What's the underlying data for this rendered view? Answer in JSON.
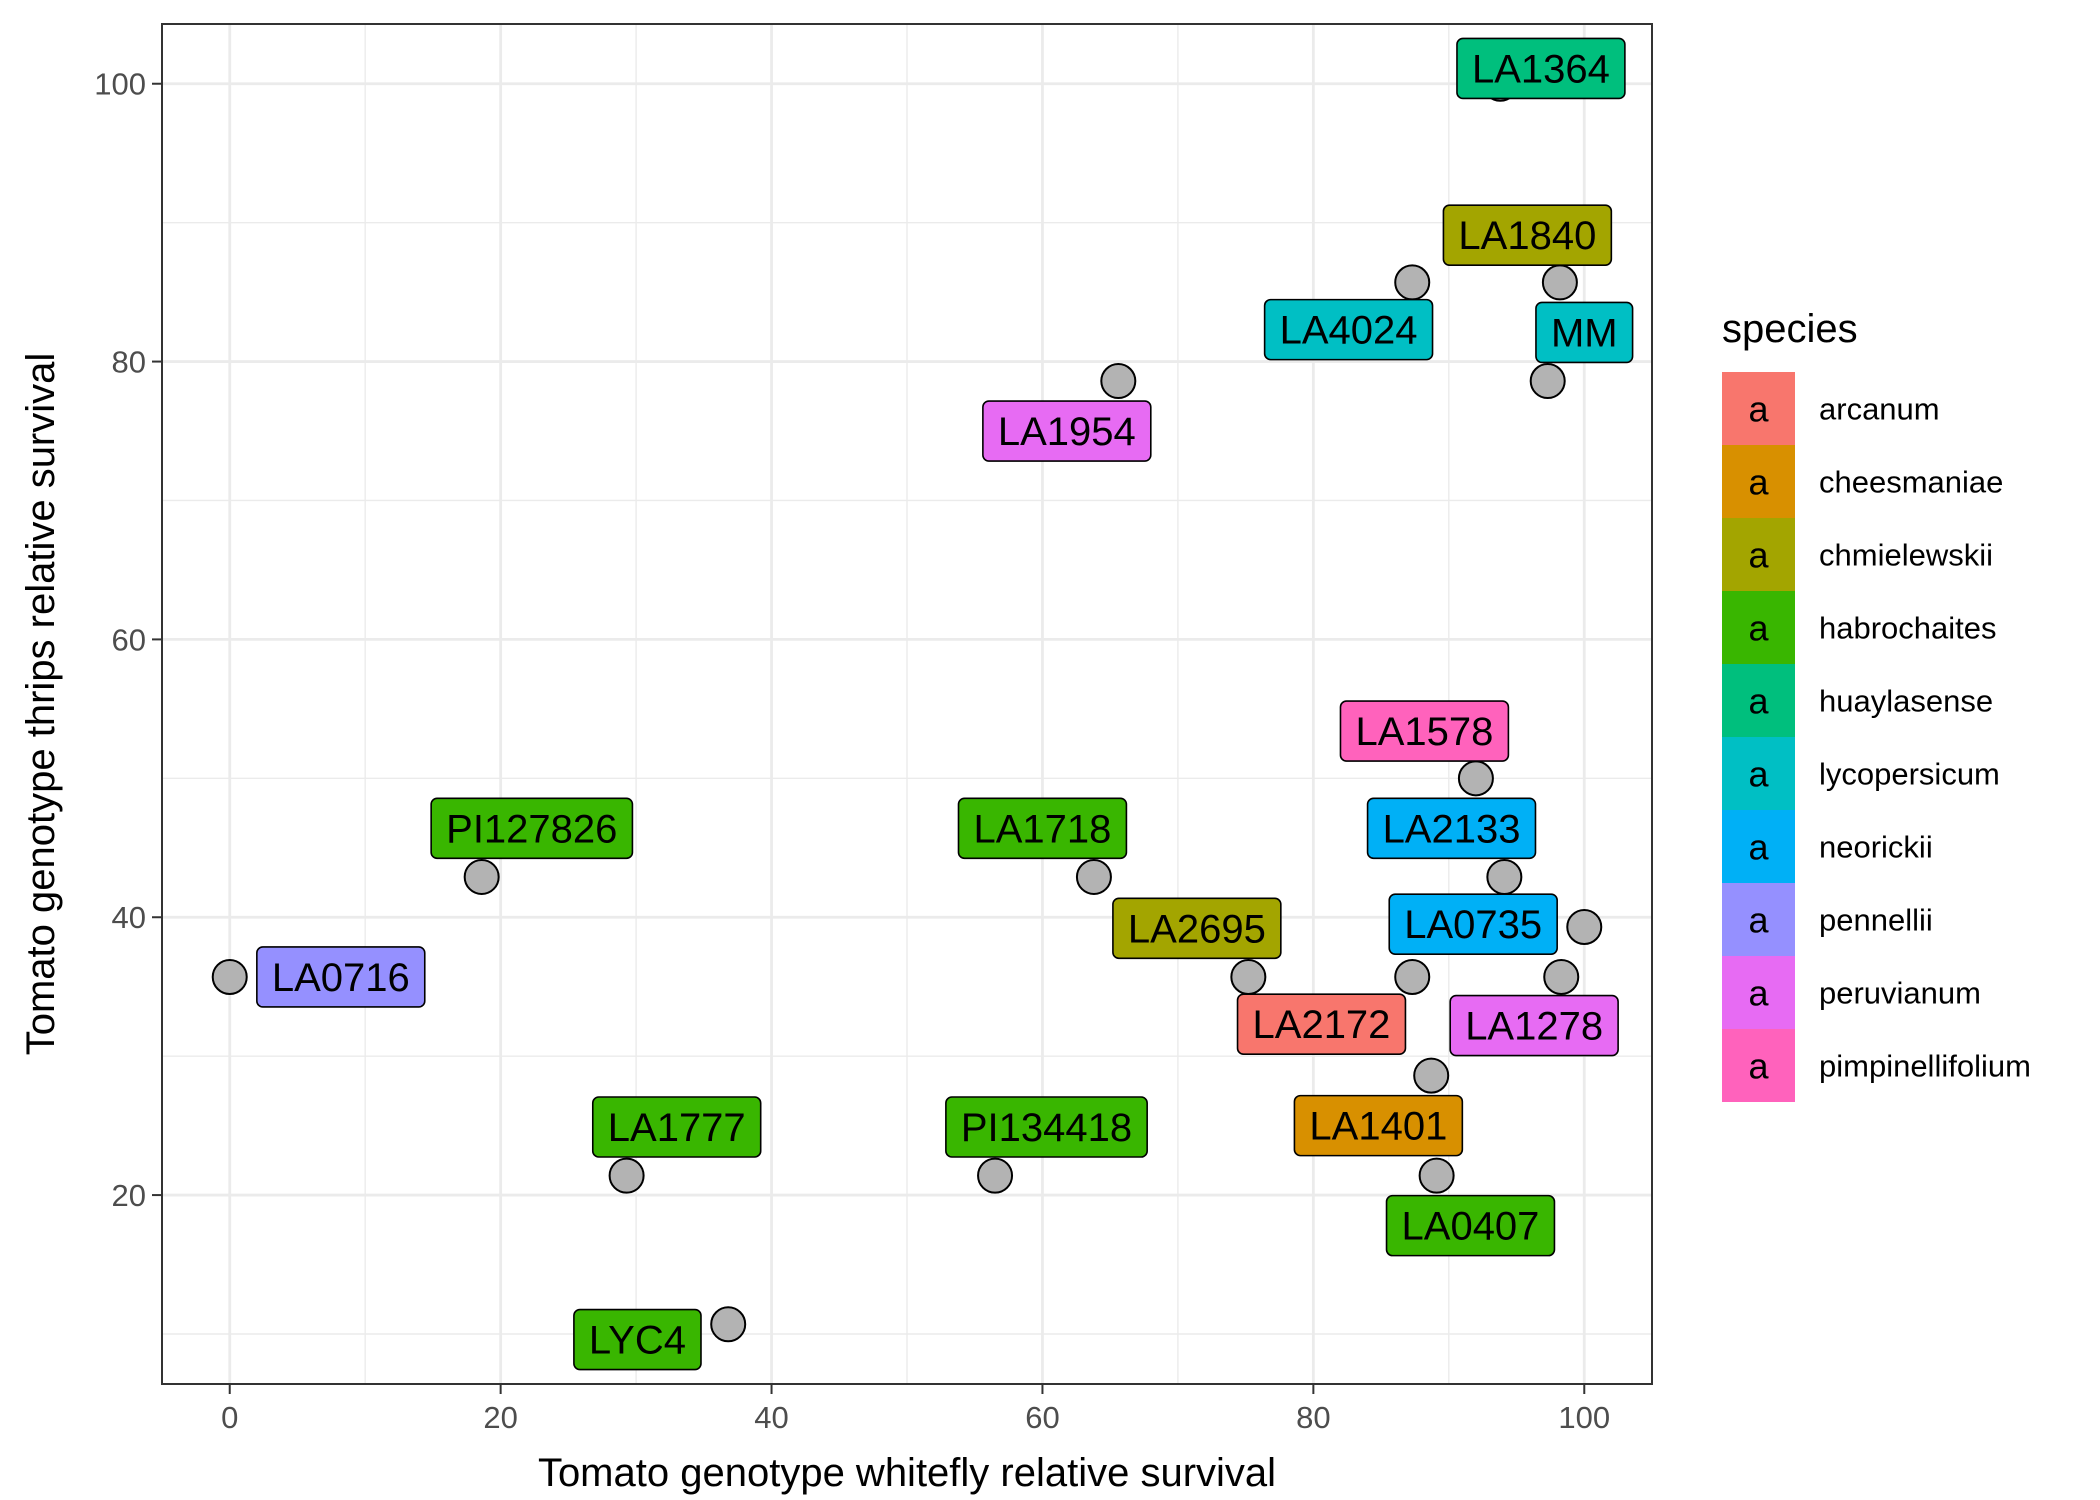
{
  "chart_data": {
    "type": "scatter",
    "title": "",
    "xlabel": "Tomato genotype whitefly relative survival",
    "ylabel": "Tomato genotype thrips relative survival",
    "xlim": [
      -5,
      105
    ],
    "ylim": [
      6.4,
      104.3
    ],
    "x_ticks": [
      0,
      20,
      40,
      60,
      80,
      100
    ],
    "y_ticks": [
      20,
      40,
      60,
      80,
      100
    ],
    "grid": true,
    "legend": {
      "title": "species",
      "placement": "right",
      "key_glyph": "a",
      "entries": [
        {
          "name": "arcanum",
          "color": "#F8766D"
        },
        {
          "name": "cheesmaniae",
          "color": "#D89000"
        },
        {
          "name": "chmielewskii",
          "color": "#A3A500"
        },
        {
          "name": "habrochaites",
          "color": "#39B600"
        },
        {
          "name": "huaylasense",
          "color": "#00BF7D"
        },
        {
          "name": "lycopersicum",
          "color": "#00BFC4"
        },
        {
          "name": "neorickii",
          "color": "#00B0F6"
        },
        {
          "name": "pennellii",
          "color": "#9590FF"
        },
        {
          "name": "peruvianum",
          "color": "#E76BF3"
        },
        {
          "name": "pimpinellifolium",
          "color": "#FF62BC"
        }
      ]
    },
    "points": [
      {
        "label": "LA1364",
        "species": "huaylasense",
        "x": 93.8,
        "y": 100.0,
        "lx": 96.8,
        "ly": 101.1
      },
      {
        "label": "LA1840",
        "species": "chmielewskii",
        "x": 98.2,
        "y": 85.7,
        "lx": 95.8,
        "ly": 89.1
      },
      {
        "label": "LA4024",
        "species": "lycopersicum",
        "x": 87.3,
        "y": 85.7,
        "lx": 82.6,
        "ly": 82.3
      },
      {
        "label": "MM",
        "species": "lycopersicum",
        "x": 97.3,
        "y": 78.6,
        "lx": 100.0,
        "ly": 82.1
      },
      {
        "label": "LA1954",
        "species": "peruvianum",
        "x": 65.6,
        "y": 78.6,
        "lx": 61.8,
        "ly": 75.0
      },
      {
        "label": "LA1578",
        "species": "pimpinellifolium",
        "x": 92.0,
        "y": 50.0,
        "lx": 88.2,
        "ly": 53.4
      },
      {
        "label": "LA2133",
        "species": "neorickii",
        "x": 94.1,
        "y": 42.9,
        "lx": 90.2,
        "ly": 46.4
      },
      {
        "label": "LA0735",
        "species": "neorickii",
        "x": 87.3,
        "y": 35.7,
        "lx": 91.8,
        "ly": 39.5
      },
      {
        "label": "LA1718",
        "species": "habrochaites",
        "x": 63.8,
        "y": 42.9,
        "lx": 60.0,
        "ly": 46.4
      },
      {
        "label": "LA2695",
        "species": "chmielewskii",
        "x": 75.2,
        "y": 35.7,
        "lx": 71.4,
        "ly": 39.2
      },
      {
        "label": "LA2172",
        "species": "arcanum",
        "x": 88.7,
        "y": 28.6,
        "lx": 80.6,
        "ly": 32.3
      },
      {
        "label": "LA1278",
        "species": "peruvianum",
        "x": 98.3,
        "y": 35.7,
        "lx": 96.3,
        "ly": 32.2
      },
      {
        "label": "LA1401",
        "species": "cheesmaniae",
        "x": 89.1,
        "y": 21.4,
        "lx": 84.8,
        "ly": 25.0
      },
      {
        "label": "LA0407",
        "species": "habrochaites",
        "x": 100.0,
        "y": 39.3,
        "lx": 91.6,
        "ly": 17.8
      },
      {
        "label": "PI127826",
        "species": "habrochaites",
        "x": 18.6,
        "y": 42.9,
        "lx": 22.3,
        "ly": 46.4
      },
      {
        "label": "LA0716",
        "species": "pennellii",
        "x": 0.0,
        "y": 35.7,
        "lx": 8.2,
        "ly": 35.7
      },
      {
        "label": "LA1777",
        "species": "habrochaites",
        "x": 29.3,
        "y": 21.4,
        "lx": 33.0,
        "ly": 24.9
      },
      {
        "label": "PI134418",
        "species": "habrochaites",
        "x": 56.5,
        "y": 21.4,
        "lx": 60.3,
        "ly": 24.9
      },
      {
        "label": "LYC4",
        "species": "habrochaites",
        "x": 36.8,
        "y": 10.7,
        "lx": 30.1,
        "ly": 9.6
      }
    ]
  }
}
